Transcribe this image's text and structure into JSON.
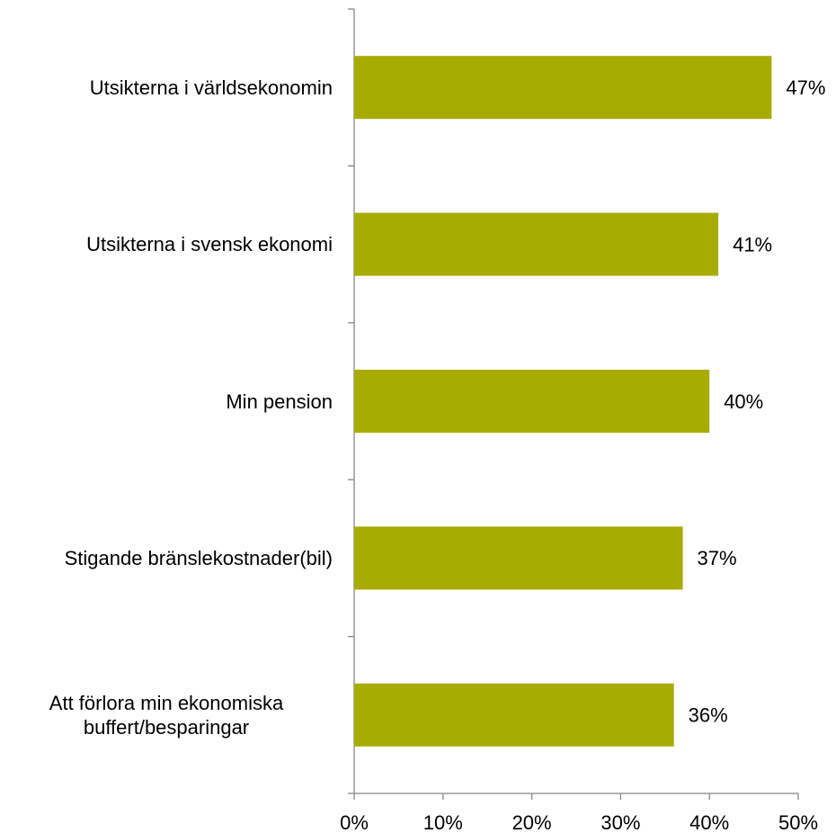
{
  "chart_data": {
    "type": "barh",
    "categories": [
      "Utsikterna i världsekonomin",
      "Utsikterna i svensk ekonomi",
      "Min pension",
      "Stigande bränslekostnader(bil)",
      "Att förlora min ekonomiska buffert/besparingar"
    ],
    "values": [
      47,
      41,
      40,
      37,
      36
    ],
    "value_labels": [
      "47%",
      "41%",
      "40%",
      "37%",
      "36%"
    ],
    "color": "#a8ab00",
    "xlim": [
      0,
      50
    ],
    "xticks": [
      {
        "value": 0,
        "label": "0%"
      },
      {
        "value": 10,
        "label": "10%"
      },
      {
        "value": 20,
        "label": "20%"
      },
      {
        "value": 30,
        "label": "30%"
      },
      {
        "value": 40,
        "label": "40%"
      },
      {
        "value": 50,
        "label": "50%"
      }
    ]
  }
}
